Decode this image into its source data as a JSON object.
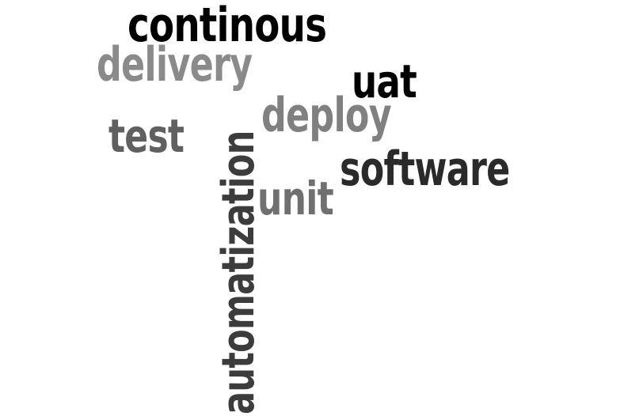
{
  "words": {
    "continous": {
      "text": "continous",
      "color": "#000000"
    },
    "delivery": {
      "text": "delivery",
      "color": "#8a8a8a"
    },
    "uat": {
      "text": "uat",
      "color": "#000000"
    },
    "deploy": {
      "text": "deploy",
      "color": "#808080"
    },
    "test": {
      "text": "test",
      "color": "#606060"
    },
    "software": {
      "text": "software",
      "color": "#2a2a2a"
    },
    "unit": {
      "text": "unit",
      "color": "#707070"
    },
    "automatization": {
      "text": "automatization",
      "color": "#3c3c3c",
      "orientation": "vertical"
    }
  }
}
